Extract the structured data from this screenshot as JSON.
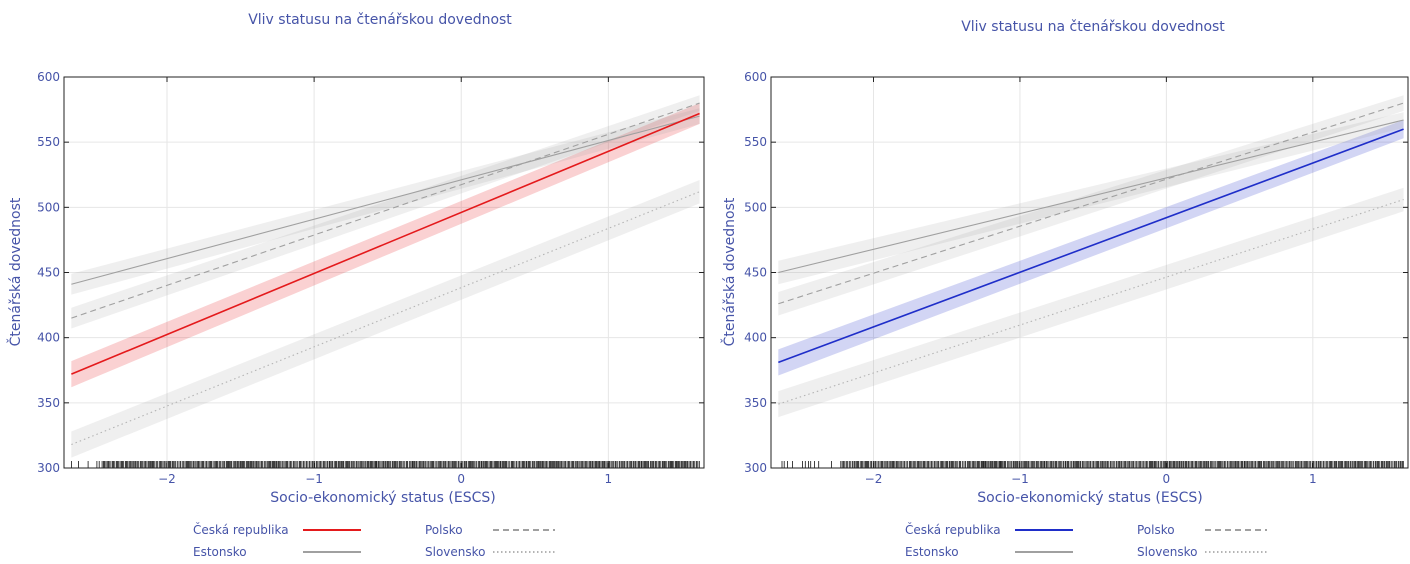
{
  "chart_data": [
    {
      "type": "line",
      "title": "Vliv statusu na čtenářskou dovednost",
      "xlabel": "Socio-ekonomický status (ESCS)",
      "ylabel": "Čtenářská dovednost",
      "xlim": [
        -2.7,
        1.65
      ],
      "ylim": [
        300,
        600
      ],
      "xticks": [
        -2,
        -1,
        0,
        1
      ],
      "yticks": [
        300,
        350,
        400,
        450,
        500,
        550,
        600
      ],
      "grid": true,
      "legend_position": "bottom",
      "highlight_color": "#e41a1c",
      "series": [
        {
          "name": "Česká republika",
          "style": "solid",
          "color": "#e41a1c",
          "highlight": true,
          "x": [
            -2.65,
            1.62
          ],
          "y": [
            372,
            572
          ],
          "ci": [
            [
              10,
              8
            ],
            [
              10,
              8
            ]
          ]
        },
        {
          "name": "Polsko",
          "style": "dashed",
          "color": "#a0a0a0",
          "x": [
            -2.65,
            1.62
          ],
          "y": [
            415,
            580
          ],
          "ci": [
            [
              8,
              6
            ],
            [
              8,
              6
            ]
          ]
        },
        {
          "name": "Estonsko",
          "style": "solid",
          "color": "#a0a0a0",
          "x": [
            -2.65,
            1.62
          ],
          "y": [
            441,
            570
          ],
          "ci": [
            [
              8,
              6
            ],
            [
              8,
              6
            ]
          ]
        },
        {
          "name": "Slovensko",
          "style": "dotted",
          "color": "#b4b4b4",
          "x": [
            -2.65,
            1.62
          ],
          "y": [
            318,
            512
          ],
          "ci": [
            [
              10,
              9
            ],
            [
              10,
              9
            ]
          ]
        }
      ],
      "rug": {
        "x_start": -2.65,
        "x_end": 1.62,
        "dense_from": -2.45
      }
    },
    {
      "type": "line",
      "title": "Vliv statusu na čtenářskou dovednost",
      "xlabel": "Socio-ekonomický status (ESCS)",
      "ylabel": "Čtenářská dovednost",
      "xlim": [
        -2.7,
        1.65
      ],
      "ylim": [
        300,
        600
      ],
      "xticks": [
        -2,
        -1,
        0,
        1
      ],
      "yticks": [
        300,
        350,
        400,
        450,
        500,
        550,
        600
      ],
      "grid": true,
      "legend_position": "bottom",
      "highlight_color": "#1f2ec9",
      "series": [
        {
          "name": "Česká republika",
          "style": "solid",
          "color": "#1f2ec9",
          "highlight": true,
          "x": [
            -2.65,
            1.62
          ],
          "y": [
            381,
            560
          ],
          "ci": [
            [
              10,
              7
            ],
            [
              10,
              7
            ]
          ]
        },
        {
          "name": "Polsko",
          "style": "dashed",
          "color": "#a0a0a0",
          "x": [
            -2.65,
            1.62
          ],
          "y": [
            426,
            580
          ],
          "ci": [
            [
              9,
              6
            ],
            [
              9,
              6
            ]
          ]
        },
        {
          "name": "Estonsko",
          "style": "solid",
          "color": "#a0a0a0",
          "x": [
            -2.65,
            1.62
          ],
          "y": [
            450,
            567
          ],
          "ci": [
            [
              9,
              6
            ],
            [
              9,
              6
            ]
          ]
        },
        {
          "name": "Slovensko",
          "style": "dotted",
          "color": "#b4b4b4",
          "x": [
            -2.65,
            1.62
          ],
          "y": [
            349,
            506
          ],
          "ci": [
            [
              10,
              9
            ],
            [
              10,
              9
            ]
          ]
        }
      ],
      "rug": {
        "x_start": -2.65,
        "x_end": 1.62,
        "dense_from": -2.25
      }
    }
  ],
  "legend": [
    {
      "label": "Česká republika",
      "key": "cz"
    },
    {
      "label": "Polsko",
      "key": "pl"
    },
    {
      "label": "Estonsko",
      "key": "ee"
    },
    {
      "label": "Slovensko",
      "key": "sk"
    }
  ]
}
